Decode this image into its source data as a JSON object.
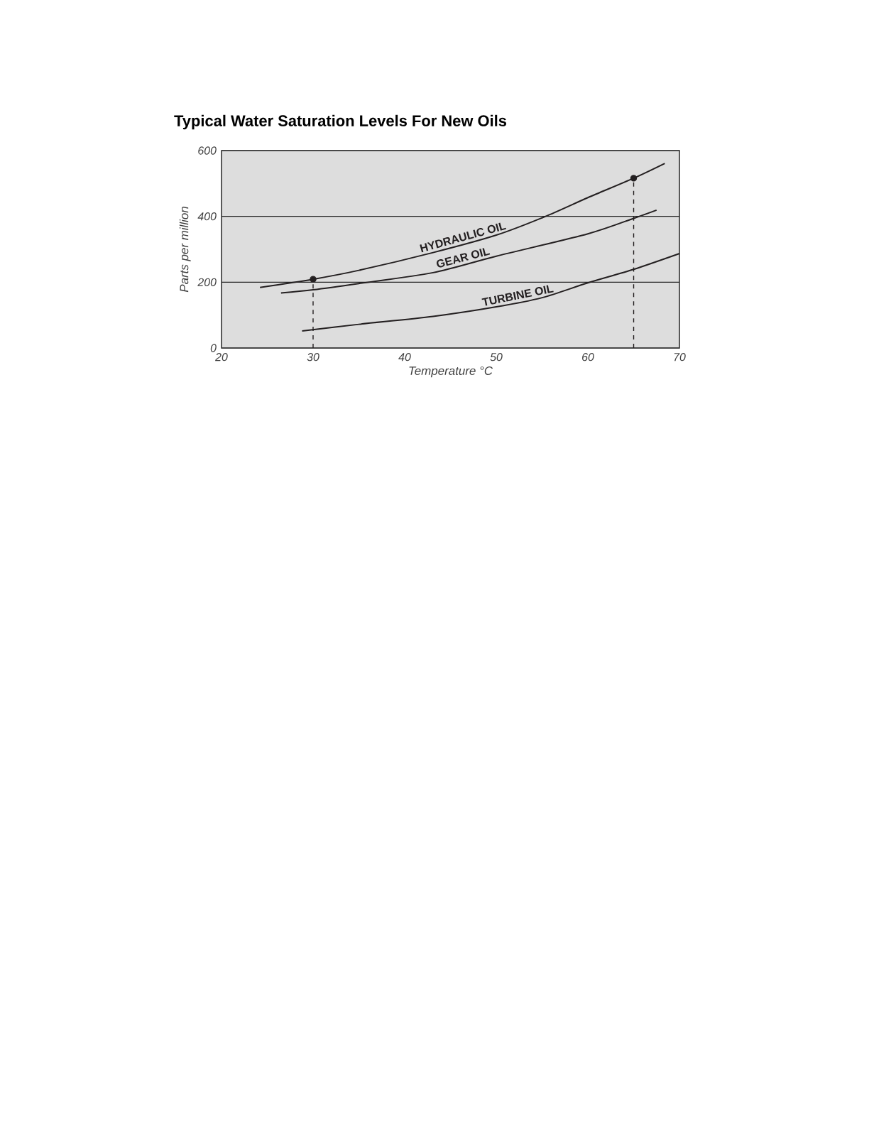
{
  "chart_data": {
    "type": "line",
    "title": "Typical Water Saturation Levels For New Oils",
    "xlabel": "Temperature °C",
    "ylabel": "Parts per million",
    "xlim": [
      20,
      70
    ],
    "xticks": [
      20,
      30,
      40,
      50,
      60,
      70
    ],
    "ylim": [
      0,
      600
    ],
    "yticks": [
      0,
      200,
      400,
      600
    ],
    "grid": "y",
    "marker": "none",
    "line_style": "solid",
    "series": [
      {
        "name": "HYDRAULIC OIL",
        "color": "#231f20",
        "x": [
          24.2,
          30,
          35,
          43.1,
          50,
          55.3,
          60,
          65,
          68.4
        ],
        "values": [
          184,
          209,
          236,
          290,
          343,
          399,
          457,
          516,
          561
        ]
      },
      {
        "name": "GEAR OIL",
        "color": "#231f20",
        "x": [
          26.5,
          30,
          35,
          43.1,
          50,
          60,
          65,
          67.5
        ],
        "values": [
          167,
          177,
          196,
          229,
          279,
          347,
          394,
          419
        ]
      },
      {
        "name": "TURBINE OIL",
        "color": "#231f20",
        "x": [
          28.8,
          35,
          43.1,
          50,
          55,
          60,
          65,
          70
        ],
        "values": [
          52,
          72,
          96,
          125,
          153,
          198,
          239,
          287
        ]
      },
      {
        "type": "lollipop",
        "color": "#231f20",
        "marker": "circle",
        "line_style": "dashed",
        "x": [
          30,
          65
        ],
        "values": [
          209,
          516
        ]
      }
    ]
  }
}
